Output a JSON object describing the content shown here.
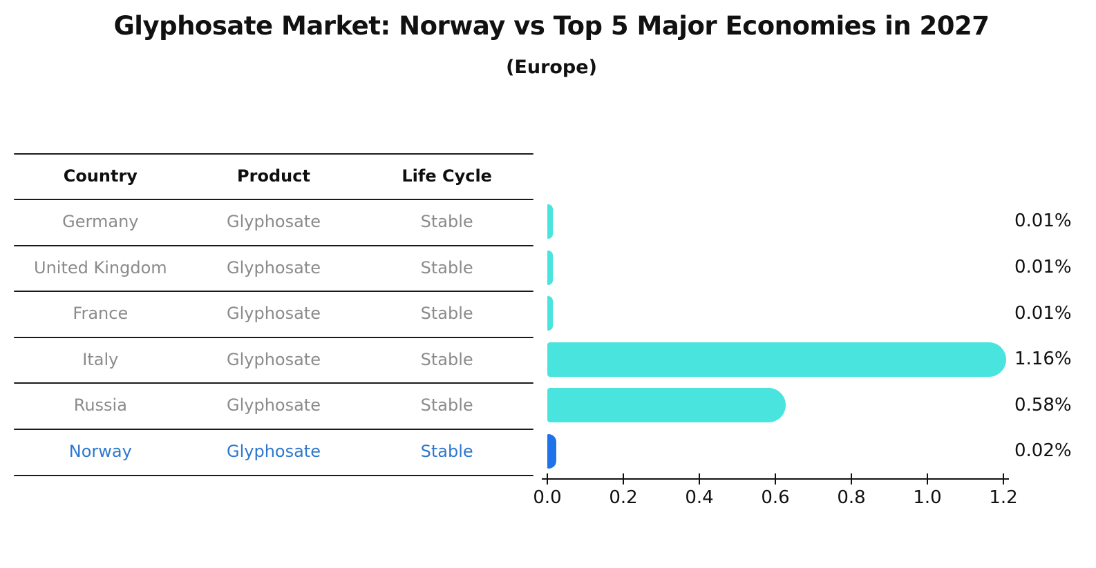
{
  "title": "Glyphosate Market: Norway vs Top 5 Major Economies in 2027",
  "subtitle": "(Europe)",
  "colors": {
    "bar_default": "#4ae4df",
    "bar_highlight": "#1e73eb",
    "row_text": "#8b8b8b",
    "row_text_highlight": "#2e78cd",
    "text": "#111111",
    "line": "#1a1a1a"
  },
  "table": {
    "headers": [
      "Country",
      "Product",
      "Life Cycle"
    ],
    "rows": [
      {
        "country": "Germany",
        "product": "Glyphosate",
        "life_cycle": "Stable",
        "highlight": false
      },
      {
        "country": "United Kingdom",
        "product": "Glyphosate",
        "life_cycle": "Stable",
        "highlight": false
      },
      {
        "country": "France",
        "product": "Glyphosate",
        "life_cycle": "Stable",
        "highlight": false
      },
      {
        "country": "Italy",
        "product": "Glyphosate",
        "life_cycle": "Stable",
        "highlight": false
      },
      {
        "country": "Russia",
        "product": "Glyphosate",
        "life_cycle": "Stable",
        "highlight": false
      },
      {
        "country": "Norway",
        "product": "Glyphosate",
        "life_cycle": "Stable",
        "highlight": true
      }
    ]
  },
  "chart_data": {
    "type": "bar",
    "orientation": "horizontal",
    "title": "Glyphosate Market: Norway vs Top 5 Major Economies in 2027",
    "subtitle": "(Europe)",
    "categories": [
      "Germany",
      "United Kingdom",
      "France",
      "Italy",
      "Russia",
      "Norway"
    ],
    "values": [
      0.01,
      0.01,
      0.01,
      1.16,
      0.58,
      0.02
    ],
    "value_labels": [
      "0.01%",
      "0.01%",
      "0.01%",
      "1.16%",
      "0.58%",
      "0.02%"
    ],
    "unit": "%",
    "highlight_category": "Norway",
    "bar_colors": [
      "#4ae4df",
      "#4ae4df",
      "#4ae4df",
      "#4ae4df",
      "#4ae4df",
      "#1e73eb"
    ],
    "x_ticks": [
      "0.0",
      "0.2",
      "0.4",
      "0.6",
      "0.8",
      "1.0",
      "1.2"
    ],
    "xlim": [
      0,
      1.2
    ],
    "grid": false,
    "legend": false
  }
}
